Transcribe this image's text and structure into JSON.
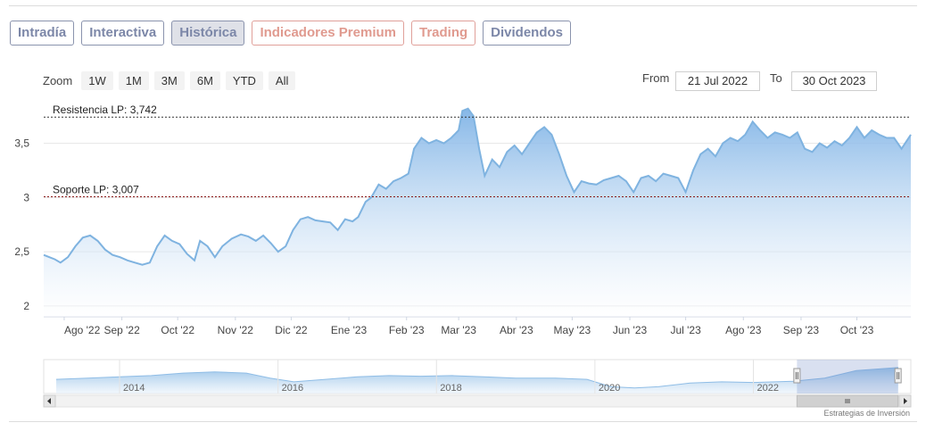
{
  "tabs": [
    {
      "label": "Intradía",
      "active": false
    },
    {
      "label": "Interactiva",
      "active": false
    },
    {
      "label": "Histórica",
      "active": true
    },
    {
      "label": "Indicadores Premium",
      "active": false,
      "premium": true
    },
    {
      "label": "Trading",
      "active": false,
      "premium": true
    },
    {
      "label": "Dividendos",
      "active": false
    }
  ],
  "zoom": {
    "label": "Zoom",
    "buttons": [
      "1W",
      "1M",
      "3M",
      "6M",
      "YTD",
      "All"
    ]
  },
  "range": {
    "from_label": "From",
    "from_value": "21 Jul 2022",
    "to_label": "To",
    "to_value": "30 Oct 2023"
  },
  "credit": "Estrategias de Inversión",
  "colors": {
    "line": "#7fb3e0",
    "fill_top": "#7fb3e6",
    "fill_bottom": "#ffffff",
    "resistance": "#333333",
    "support": "#8b1a1a",
    "tab_border": "#8a93ad",
    "premium": "#e09a8f"
  },
  "chart_data": [
    {
      "type": "area",
      "ylim": [
        1.9,
        3.9
      ],
      "yticks": [
        "2",
        "2,5",
        "3",
        "3,5"
      ],
      "ytick_values": [
        2,
        2.5,
        3,
        3.5
      ],
      "x_tick_labels": [
        "Ago '22",
        "Sep '22",
        "Oct '22",
        "Nov '22",
        "Dic '22",
        "Ene '23",
        "Feb '23",
        "Mar '23",
        "Abr '23",
        "May '23",
        "Jun '23",
        "Jul '23",
        "Ago '23",
        "Sep '23",
        "Oct '23"
      ],
      "x_tick_dates": [
        "2022-08-01",
        "2022-09-01",
        "2022-10-01",
        "2022-11-01",
        "2022-12-01",
        "2023-01-01",
        "2023-02-01",
        "2023-03-01",
        "2023-04-01",
        "2023-05-01",
        "2023-06-01",
        "2023-07-01",
        "2023-08-01",
        "2023-09-01",
        "2023-10-01"
      ],
      "x_start": "2022-07-21",
      "x_end": "2023-10-30",
      "reference_lines": [
        {
          "label": "Resistencia LP: 3,742",
          "value": 3.742,
          "style": "dotted-dark"
        },
        {
          "label": "Soporte LP: 3,007",
          "value": 3.007,
          "style": "dotted-red"
        }
      ],
      "series": [
        {
          "points": [
            [
              "2022-07-21",
              2.47
            ],
            [
              "2022-07-24",
              2.45
            ],
            [
              "2022-07-27",
              2.43
            ],
            [
              "2022-07-30",
              2.4
            ],
            [
              "2022-08-03",
              2.45
            ],
            [
              "2022-08-07",
              2.55
            ],
            [
              "2022-08-11",
              2.63
            ],
            [
              "2022-08-15",
              2.65
            ],
            [
              "2022-08-19",
              2.6
            ],
            [
              "2022-08-23",
              2.52
            ],
            [
              "2022-08-27",
              2.47
            ],
            [
              "2022-08-31",
              2.45
            ],
            [
              "2022-09-04",
              2.42
            ],
            [
              "2022-09-08",
              2.4
            ],
            [
              "2022-09-12",
              2.38
            ],
            [
              "2022-09-16",
              2.4
            ],
            [
              "2022-09-20",
              2.55
            ],
            [
              "2022-09-24",
              2.65
            ],
            [
              "2022-09-28",
              2.6
            ],
            [
              "2022-10-02",
              2.57
            ],
            [
              "2022-10-06",
              2.48
            ],
            [
              "2022-10-10",
              2.42
            ],
            [
              "2022-10-13",
              2.6
            ],
            [
              "2022-10-17",
              2.55
            ],
            [
              "2022-10-21",
              2.45
            ],
            [
              "2022-10-25",
              2.55
            ],
            [
              "2022-10-30",
              2.62
            ],
            [
              "2022-11-04",
              2.66
            ],
            [
              "2022-11-08",
              2.64
            ],
            [
              "2022-11-12",
              2.6
            ],
            [
              "2022-11-16",
              2.65
            ],
            [
              "2022-11-20",
              2.58
            ],
            [
              "2022-11-24",
              2.5
            ],
            [
              "2022-11-28",
              2.55
            ],
            [
              "2022-12-02",
              2.7
            ],
            [
              "2022-12-06",
              2.8
            ],
            [
              "2022-12-10",
              2.82
            ],
            [
              "2022-12-14",
              2.79
            ],
            [
              "2022-12-18",
              2.78
            ],
            [
              "2022-12-22",
              2.77
            ],
            [
              "2022-12-26",
              2.7
            ],
            [
              "2022-12-30",
              2.8
            ],
            [
              "2023-01-03",
              2.78
            ],
            [
              "2023-01-06",
              2.82
            ],
            [
              "2023-01-10",
              2.96
            ],
            [
              "2023-01-13",
              3.0
            ],
            [
              "2023-01-17",
              3.12
            ],
            [
              "2023-01-21",
              3.08
            ],
            [
              "2023-01-25",
              3.15
            ],
            [
              "2023-01-29",
              3.18
            ],
            [
              "2023-02-02",
              3.22
            ],
            [
              "2023-02-05",
              3.45
            ],
            [
              "2023-02-09",
              3.55
            ],
            [
              "2023-02-13",
              3.5
            ],
            [
              "2023-02-17",
              3.53
            ],
            [
              "2023-02-21",
              3.5
            ],
            [
              "2023-02-25",
              3.55
            ],
            [
              "2023-03-01",
              3.62
            ],
            [
              "2023-03-03",
              3.8
            ],
            [
              "2023-03-06",
              3.82
            ],
            [
              "2023-03-09",
              3.75
            ],
            [
              "2023-03-12",
              3.45
            ],
            [
              "2023-03-15",
              3.2
            ],
            [
              "2023-03-19",
              3.35
            ],
            [
              "2023-03-23",
              3.28
            ],
            [
              "2023-03-27",
              3.42
            ],
            [
              "2023-03-31",
              3.48
            ],
            [
              "2023-04-04",
              3.4
            ],
            [
              "2023-04-08",
              3.5
            ],
            [
              "2023-04-12",
              3.6
            ],
            [
              "2023-04-16",
              3.65
            ],
            [
              "2023-04-20",
              3.58
            ],
            [
              "2023-04-24",
              3.4
            ],
            [
              "2023-04-28",
              3.2
            ],
            [
              "2023-05-02",
              3.05
            ],
            [
              "2023-05-06",
              3.15
            ],
            [
              "2023-05-10",
              3.13
            ],
            [
              "2023-05-14",
              3.12
            ],
            [
              "2023-05-18",
              3.16
            ],
            [
              "2023-05-22",
              3.18
            ],
            [
              "2023-05-26",
              3.2
            ],
            [
              "2023-05-30",
              3.15
            ],
            [
              "2023-06-03",
              3.05
            ],
            [
              "2023-06-07",
              3.18
            ],
            [
              "2023-06-11",
              3.2
            ],
            [
              "2023-06-15",
              3.15
            ],
            [
              "2023-06-19",
              3.22
            ],
            [
              "2023-06-23",
              3.2
            ],
            [
              "2023-06-27",
              3.18
            ],
            [
              "2023-07-01",
              3.05
            ],
            [
              "2023-07-05",
              3.25
            ],
            [
              "2023-07-09",
              3.4
            ],
            [
              "2023-07-13",
              3.45
            ],
            [
              "2023-07-17",
              3.38
            ],
            [
              "2023-07-21",
              3.5
            ],
            [
              "2023-07-25",
              3.55
            ],
            [
              "2023-07-29",
              3.52
            ],
            [
              "2023-08-02",
              3.58
            ],
            [
              "2023-08-06",
              3.7
            ],
            [
              "2023-08-10",
              3.62
            ],
            [
              "2023-08-14",
              3.55
            ],
            [
              "2023-08-18",
              3.6
            ],
            [
              "2023-08-22",
              3.58
            ],
            [
              "2023-08-26",
              3.55
            ],
            [
              "2023-08-30",
              3.6
            ],
            [
              "2023-09-03",
              3.45
            ],
            [
              "2023-09-07",
              3.42
            ],
            [
              "2023-09-11",
              3.5
            ],
            [
              "2023-09-15",
              3.46
            ],
            [
              "2023-09-19",
              3.52
            ],
            [
              "2023-09-23",
              3.48
            ],
            [
              "2023-09-27",
              3.55
            ],
            [
              "2023-10-01",
              3.65
            ],
            [
              "2023-10-05",
              3.55
            ],
            [
              "2023-10-09",
              3.62
            ],
            [
              "2023-10-13",
              3.58
            ],
            [
              "2023-10-17",
              3.55
            ],
            [
              "2023-10-21",
              3.55
            ],
            [
              "2023-10-25",
              3.45
            ],
            [
              "2023-10-30",
              3.58
            ]
          ]
        }
      ]
    },
    {
      "type": "area",
      "role": "navigator",
      "x_tick_labels": [
        "2014",
        "2016",
        "2018",
        "2020",
        "2022"
      ],
      "x_tick_years": [
        2014,
        2016,
        2018,
        2020,
        2022
      ],
      "x_start_year": 2013.2,
      "x_end_year": 2023.83,
      "selected_range": [
        "2022-07-21",
        "2023-10-30"
      ],
      "series": [
        {
          "points": [
            [
              2013.2,
              2.6
            ],
            [
              2013.6,
              2.7
            ],
            [
              2014.0,
              2.8
            ],
            [
              2014.4,
              2.9
            ],
            [
              2014.8,
              3.1
            ],
            [
              2015.2,
              3.2
            ],
            [
              2015.6,
              3.1
            ],
            [
              2015.9,
              2.7
            ],
            [
              2016.2,
              2.4
            ],
            [
              2016.6,
              2.6
            ],
            [
              2017.0,
              2.8
            ],
            [
              2017.4,
              2.9
            ],
            [
              2017.8,
              2.85
            ],
            [
              2018.2,
              2.9
            ],
            [
              2018.6,
              2.8
            ],
            [
              2019.0,
              2.7
            ],
            [
              2019.5,
              2.7
            ],
            [
              2019.9,
              2.6
            ],
            [
              2020.2,
              2.0
            ],
            [
              2020.5,
              1.9
            ],
            [
              2020.8,
              2.0
            ],
            [
              2021.2,
              2.3
            ],
            [
              2021.6,
              2.4
            ],
            [
              2022.0,
              2.35
            ],
            [
              2022.5,
              2.45
            ],
            [
              2022.9,
              2.7
            ],
            [
              2023.3,
              3.3
            ],
            [
              2023.83,
              3.55
            ]
          ]
        }
      ]
    }
  ]
}
